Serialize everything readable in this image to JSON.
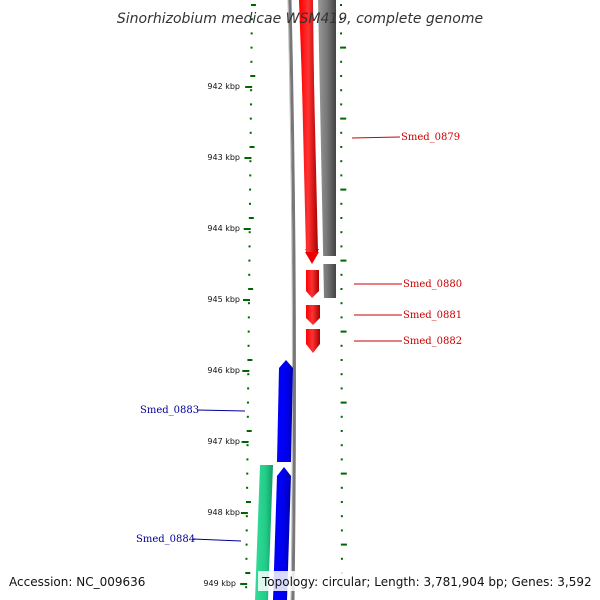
{
  "title": "Sinorhizobium medicae WSM419, complete genome",
  "footer": {
    "accession": "Accession: NC_009636",
    "topology": "Topology: circular; Length: 3,781,904 bp; Genes: 3,592"
  },
  "scale": {
    "labels": [
      "942 kbp",
      "943 kbp",
      "944 kbp",
      "945 kbp",
      "946 kbp",
      "947 kbp",
      "948 kbp",
      "949 kbp"
    ]
  },
  "genes": [
    {
      "name": "Smed_0879",
      "strand": "+",
      "color": "#cc0000"
    },
    {
      "name": "Smed_0880",
      "strand": "+",
      "color": "#cc0000"
    },
    {
      "name": "Smed_0881",
      "strand": "+",
      "color": "#cc0000"
    },
    {
      "name": "Smed_0882",
      "strand": "+",
      "color": "#cc0000"
    },
    {
      "name": "Smed_0883",
      "strand": "-",
      "color": "#000099"
    },
    {
      "name": "Smed_0884",
      "strand": "-",
      "color": "#000099"
    }
  ],
  "colors": {
    "forward_cds": "#ff0000",
    "reverse_cds": "#0000ff",
    "grey_feature": "#808080",
    "pink_feature": "#ff3399",
    "teal_feature": "#33dd99",
    "tick": "#006600",
    "forward_label": "#cc0000",
    "reverse_label": "#000099"
  }
}
